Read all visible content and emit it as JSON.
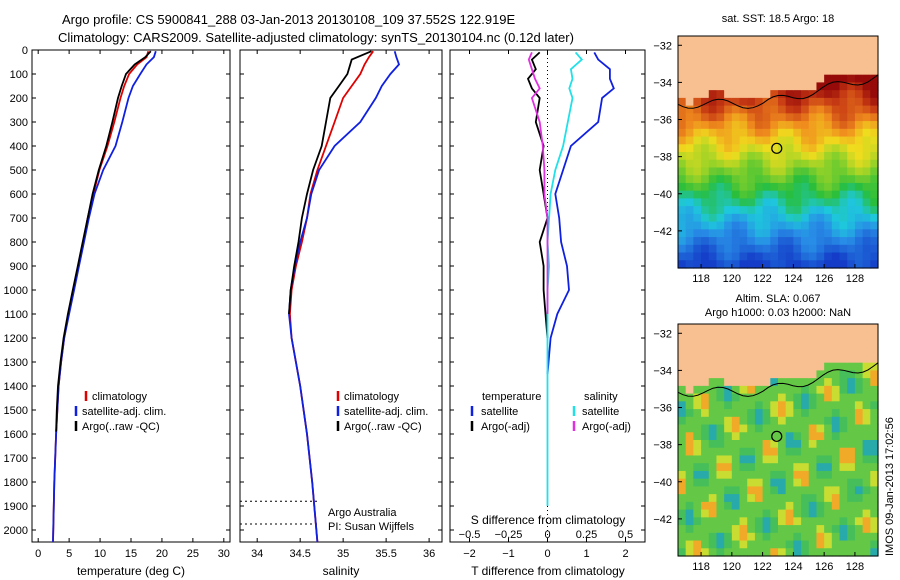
{
  "header": {
    "title_line1": "Argo profile: CS 5900841_288 03-Jan-2013 20130108_109 37.552S 122.919E",
    "title_line2": "Climatology: CARS2009. Satellite-adjusted climatology: synTS_20130104.nc (0.12d later)"
  },
  "colors": {
    "climatology": "#e00000",
    "satellite": "#1020e0",
    "argo": "#000000",
    "sal_satellite": "#20e0e8",
    "sal_argo": "#e030e0"
  },
  "chart_data": [
    {
      "type": "line",
      "name": "temperature",
      "xlabel": "temperature (deg C)",
      "xlim": [
        -1,
        31
      ],
      "ylim": [
        2050,
        0
      ],
      "xticks": [
        "0",
        "5",
        "10",
        "15",
        "20",
        "25",
        "30"
      ],
      "xtick_values": [
        0,
        5,
        10,
        15,
        20,
        25,
        30
      ],
      "yticks": [
        "0",
        "100",
        "200",
        "300",
        "400",
        "500",
        "600",
        "700",
        "800",
        "900",
        "1000",
        "1100",
        "1200",
        "1300",
        "1400",
        "1500",
        "1600",
        "1700",
        "1800",
        "1900",
        "2000"
      ],
      "ytick_values": [
        0,
        100,
        200,
        300,
        400,
        500,
        600,
        700,
        800,
        900,
        1000,
        1100,
        1200,
        1300,
        1400,
        1500,
        1600,
        1700,
        1800,
        1900,
        2000
      ],
      "legend": [
        "climatology",
        "satellite-adj. clim.",
        "Argo(..raw -QC)"
      ],
      "series": [
        {
          "name": "climatology",
          "depth": [
            5,
            30,
            60,
            100,
            150,
            200,
            300,
            400,
            500,
            600,
            700,
            800,
            900,
            1000,
            1100,
            1200,
            1300,
            1400,
            1600,
            1800,
            2050
          ],
          "values": [
            17.8,
            17.5,
            16.0,
            14.7,
            13.9,
            13.3,
            12.3,
            11.2,
            9.9,
            8.9,
            8.0,
            7.3,
            6.5,
            5.7,
            4.9,
            4.2,
            3.7,
            3.3,
            2.9,
            2.6,
            2.4
          ]
        },
        {
          "name": "satellite",
          "depth": [
            5,
            30,
            60,
            100,
            150,
            200,
            300,
            400,
            500,
            600,
            700,
            800,
            900,
            1000,
            1100,
            1200,
            1300,
            1400,
            1600,
            1800,
            2050
          ],
          "values": [
            19.0,
            18.7,
            17.5,
            16.5,
            15.3,
            14.6,
            13.6,
            12.5,
            10.5,
            9.1,
            8.2,
            7.4,
            6.6,
            5.8,
            5.0,
            4.2,
            3.7,
            3.3,
            2.9,
            2.6,
            2.4
          ]
        },
        {
          "name": "argo",
          "depth": [
            5,
            30,
            60,
            100,
            150,
            200,
            300,
            400,
            500,
            600,
            700,
            800,
            900,
            1000,
            1100,
            1200,
            1300,
            1400,
            1500,
            1590
          ],
          "values": [
            18.2,
            17.3,
            15.6,
            14.2,
            13.5,
            12.9,
            12.0,
            11.0,
            9.8,
            8.8,
            8.0,
            7.2,
            6.4,
            5.6,
            4.8,
            4.1,
            3.6,
            3.2,
            3.0,
            2.9
          ]
        }
      ]
    },
    {
      "type": "line",
      "name": "salinity",
      "xlabel": "salinity",
      "xlim": [
        33.8,
        36.15
      ],
      "ylim": [
        2050,
        0
      ],
      "xticks": [
        "34",
        "34.5",
        "35",
        "35.5",
        "36"
      ],
      "xtick_values": [
        34,
        34.5,
        35,
        35.5,
        36
      ],
      "legend": [
        "climatology",
        "satellite-adj. clim.",
        "Argo(..raw -QC)"
      ],
      "annotation_line1": "Argo Australia",
      "annotation_line2": "PI: Susan Wijffels",
      "annotation_depths": [
        1880,
        1975
      ],
      "series": [
        {
          "name": "climatology",
          "depth": [
            5,
            30,
            60,
            100,
            150,
            200,
            300,
            400,
            500,
            600,
            700,
            800,
            900,
            1000,
            1100,
            1200,
            1300,
            1400,
            1600,
            1800,
            2050
          ],
          "values": [
            35.35,
            35.3,
            35.25,
            35.2,
            35.1,
            35.0,
            34.9,
            34.8,
            34.7,
            34.62,
            34.58,
            34.52,
            34.45,
            34.4,
            34.38,
            34.4,
            34.45,
            34.5,
            34.58,
            34.64,
            34.7
          ]
        },
        {
          "name": "satellite",
          "depth": [
            5,
            30,
            60,
            100,
            150,
            200,
            300,
            400,
            500,
            600,
            700,
            800,
            900,
            1000,
            1100,
            1200,
            1300,
            1400,
            1600,
            1800,
            2050
          ],
          "values": [
            35.6,
            35.62,
            35.65,
            35.55,
            35.45,
            35.38,
            35.2,
            34.9,
            34.72,
            34.63,
            34.58,
            34.5,
            34.44,
            34.39,
            34.37,
            34.4,
            34.45,
            34.5,
            34.58,
            34.64,
            34.7
          ]
        },
        {
          "name": "argo",
          "depth": [
            5,
            40,
            100,
            150,
            200,
            300,
            400,
            500,
            600,
            700,
            800,
            900,
            1000,
            1100
          ],
          "values": [
            35.33,
            35.1,
            35.05,
            34.95,
            34.85,
            34.8,
            34.75,
            34.65,
            34.58,
            34.52,
            34.48,
            34.43,
            34.39,
            34.37
          ]
        }
      ]
    },
    {
      "type": "line",
      "name": "difference",
      "xlabel_bottom": "T difference from climatology",
      "xlabel_top": "S difference from climatology",
      "xlim": [
        -2.5,
        2.5
      ],
      "ylim": [
        2050,
        0
      ],
      "xticks": [
        "−2",
        "−1",
        "0",
        "1",
        "2"
      ],
      "xtick_values": [
        -2,
        -1,
        0,
        1,
        2
      ],
      "top_ticks": [
        "−0.5",
        "−0.25",
        "0",
        "0.25",
        "0.5"
      ],
      "top_tick_values": [
        -0.5,
        -0.25,
        0,
        0.25,
        0.5
      ],
      "legend_temp_heading": "temperature",
      "legend_sal_heading": "salinity",
      "legend_temp": [
        "satellite",
        "Argo(-adj)"
      ],
      "legend_sal": [
        "satellite",
        "Argo(-adj)"
      ],
      "series": [
        {
          "name": "T satellite",
          "depth": [
            10,
            40,
            80,
            120,
            160,
            200,
            300,
            400,
            500,
            600,
            700,
            800,
            900,
            1000,
            1100,
            1200,
            1350
          ],
          "values": [
            1.2,
            1.3,
            1.6,
            1.6,
            1.7,
            1.4,
            1.3,
            0.6,
            0.4,
            0.2,
            0.3,
            0.35,
            0.5,
            0.55,
            0.25,
            0.08,
            0.0
          ]
        },
        {
          "name": "T argo",
          "depth": [
            10,
            40,
            80,
            120,
            160,
            200,
            300,
            400,
            500,
            600,
            700,
            800,
            900,
            1000,
            1100,
            1200
          ],
          "values": [
            -0.2,
            -0.4,
            -0.3,
            -0.5,
            -0.4,
            -0.2,
            -0.3,
            -0.1,
            -0.2,
            -0.1,
            0.0,
            -0.2,
            -0.1,
            -0.1,
            -0.05,
            0.0
          ]
        },
        {
          "name": "S satellite",
          "depth": [
            10,
            40,
            80,
            120,
            160,
            200,
            300,
            400,
            500,
            600,
            700,
            800,
            900,
            1000,
            1100,
            1200,
            1300,
            1500,
            1900
          ],
          "values": [
            0.18,
            0.22,
            0.15,
            0.16,
            0.14,
            0.16,
            0.13,
            0.1,
            0.05,
            0.02,
            0.01,
            0.0,
            0.01,
            0.0,
            0.0,
            0.0,
            0.0,
            0.0,
            0.0
          ]
        },
        {
          "name": "S argo",
          "depth": [
            10,
            40,
            80,
            120,
            160,
            200,
            300,
            400,
            500,
            600,
            700,
            800,
            900,
            1000,
            1100
          ],
          "values": [
            -0.1,
            -0.12,
            -0.1,
            -0.08,
            -0.05,
            -0.1,
            -0.05,
            -0.03,
            -0.02,
            -0.02,
            0.0,
            0.0,
            0.0,
            0.0,
            0.0
          ]
        }
      ]
    }
  ],
  "maps": {
    "top_title": "sat. SST: 18.5 Argo: 18",
    "bottom_title_line1": "Altim. SLA: 0.067",
    "bottom_title_line2": "Argo h1000: 0.03 h2000: NaN",
    "lat_ticks": [
      "−32",
      "−34",
      "−36",
      "−38",
      "−40",
      "−42"
    ],
    "lat_values": [
      -32,
      -34,
      -36,
      -38,
      -40,
      -42
    ],
    "lon_ticks": [
      "118",
      "120",
      "122",
      "124",
      "126",
      "128"
    ],
    "lon_values": [
      118,
      120,
      122,
      124,
      126,
      128
    ],
    "lon_range": [
      116.5,
      129.5
    ],
    "lat_range": [
      -44,
      -31.5
    ],
    "argo_position": {
      "lon": 122.919,
      "lat": -37.552
    },
    "land_color": "#f8c090"
  },
  "footer": {
    "stamp": "IMOS 09-Jan-2013 17:02:56"
  }
}
